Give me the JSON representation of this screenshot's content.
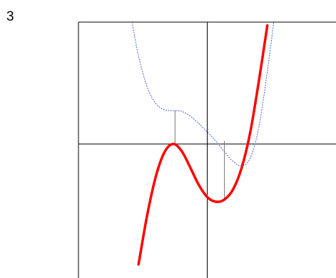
{
  "panel_label": "3",
  "colors": {
    "function": "#ff0000",
    "derivative": "#4f5fd6",
    "axes": "#000000",
    "guides": "#777777"
  },
  "chart_data": {
    "type": "line",
    "title": "",
    "xlabel": "",
    "ylabel": "",
    "xlim": [
      -3.0,
      3.0
    ],
    "ylim": [
      -5.5,
      5.0
    ],
    "grid": false,
    "legend": "none",
    "series": [
      {
        "style": "solid-thick",
        "color": "#ff0000",
        "x": [
          -1.6,
          -1.4,
          -1.2,
          -1.0,
          -0.8,
          -0.6,
          -0.4,
          -0.2,
          0.0,
          0.2,
          0.4,
          0.6,
          0.8,
          1.0,
          1.2,
          1.4
        ],
        "y": [
          -4.94,
          -2.93,
          -1.35,
          -0.35,
          0.0,
          -0.28,
          -0.95,
          -1.67,
          -2.18,
          -2.37,
          -2.28,
          -1.87,
          -0.99,
          0.46,
          2.55,
          4.86
        ]
      },
      {
        "style": "dotted-thin",
        "color": "#4f5fd6",
        "x": [
          -1.75,
          -1.6,
          -1.4,
          -1.2,
          -1.0,
          -0.8,
          -0.6,
          -0.4,
          -0.2,
          0.0,
          0.2,
          0.4,
          0.6,
          0.8,
          1.0,
          1.2,
          1.4,
          1.55
        ],
        "y": [
          5.0,
          3.6,
          2.34,
          1.66,
          1.4,
          1.37,
          1.34,
          1.15,
          0.84,
          0.5,
          0.12,
          -0.32,
          -0.71,
          -0.9,
          -0.58,
          0.67,
          2.98,
          5.0
        ]
      }
    ],
    "guides": [
      {
        "x": -0.75,
        "from_y": 0.0,
        "to_y": 1.37
      },
      {
        "x": 0.4,
        "from_y": -2.28,
        "to_y": 0.12
      },
      {
        "x": 0.95,
        "from_y": -0.9,
        "to_y": -0.9
      }
    ]
  }
}
